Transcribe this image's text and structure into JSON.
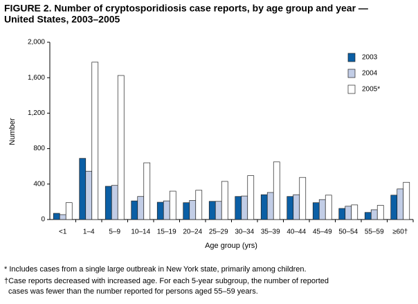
{
  "chart_data": {
    "type": "bar",
    "title_lines": [
      "FIGURE 2. Number of cryptosporidiosis case reports, by age group and year —",
      "United States, 2003–2005"
    ],
    "x_label": "Age group (yrs)",
    "y_label": "Number",
    "categories": [
      "<1",
      "1–4",
      "5–9",
      "10–14",
      "15–19",
      "20–24",
      "25–29",
      "30–34",
      "35–39",
      "40–44",
      "45–49",
      "50–54",
      "55–59",
      "≥60†"
    ],
    "series": [
      {
        "name": "2003",
        "color": "#0b5fa5",
        "values": [
          70,
          690,
          375,
          210,
          195,
          190,
          205,
          260,
          280,
          260,
          190,
          125,
          80,
          275
        ]
      },
      {
        "name": "2004",
        "color": "#c2cde6",
        "values": [
          55,
          545,
          385,
          260,
          210,
          215,
          205,
          265,
          305,
          280,
          225,
          150,
          110,
          345
        ]
      },
      {
        "name": "2005*",
        "color": "#ffffff",
        "values": [
          190,
          1775,
          1625,
          640,
          320,
          330,
          430,
          495,
          650,
          475,
          275,
          165,
          160,
          420
        ]
      }
    ],
    "ylim": [
      0,
      2000
    ],
    "yticks": [
      0,
      400,
      800,
      {
        "value": 1200,
        "label": "1,200"
      },
      {
        "value": 1600,
        "label": "1,600"
      },
      {
        "value": 2000,
        "label": "2,000"
      }
    ],
    "legend": "upper-right",
    "footnotes": [
      "* Includes cases from a single large outbreak in New York state, primarily among children.",
      "†Case reports decreased with increased age. For each 5-year subgroup, the number of reported",
      "cases was fewer than the number reported for persons aged 55–59 years."
    ]
  }
}
